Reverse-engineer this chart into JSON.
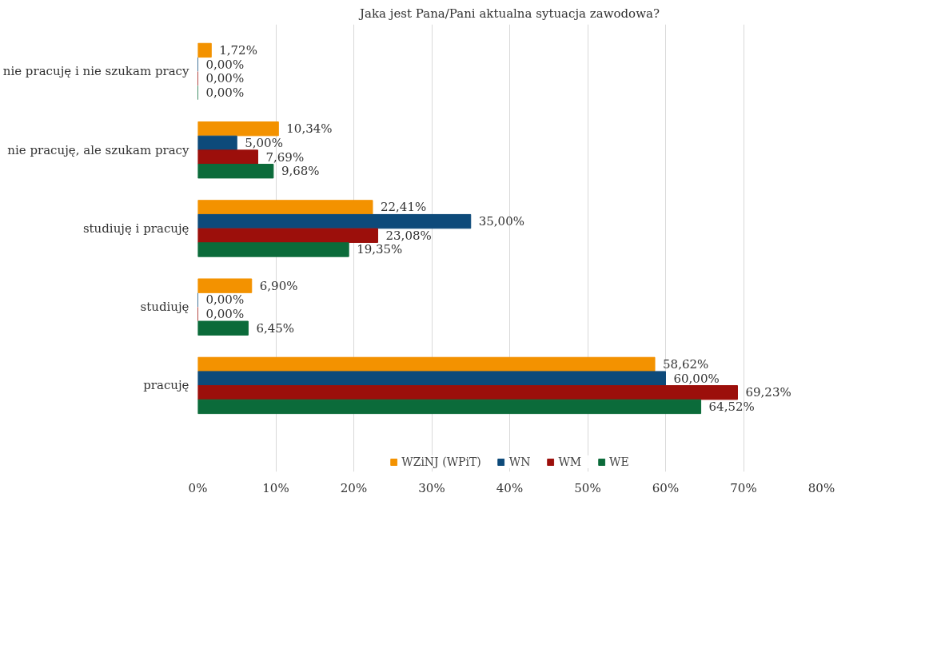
{
  "chart_data": {
    "type": "bar",
    "orientation": "horizontal",
    "title": "Jaka jest Pana/Pani aktualna sytuacja zawodowa?",
    "categories": [
      "nie pracuję i nie szukam pracy",
      "nie pracuję, ale szukam pracy",
      "studiuję i pracuję",
      "studiuję",
      "pracuję"
    ],
    "series": [
      {
        "name": "WZiNJ (WPiT)",
        "color": "#f39200",
        "values": [
          1.72,
          10.34,
          22.41,
          6.9,
          58.62
        ],
        "value_labels": [
          "1,72%",
          "10,34%",
          "22,41%",
          "6,90%",
          "58,62%"
        ]
      },
      {
        "name": "WN",
        "color": "#0d4a7a",
        "values": [
          0,
          5.0,
          35.0,
          0,
          60.0
        ],
        "value_labels": [
          "0,00%",
          "5,00%",
          "35,00%",
          "0,00%",
          "60,00%"
        ]
      },
      {
        "name": "WM",
        "color": "#9c0f0b",
        "values": [
          0,
          7.69,
          23.08,
          0,
          69.23
        ],
        "value_labels": [
          "0,00%",
          "7,69%",
          "23,08%",
          "0,00%",
          "69,23%"
        ]
      },
      {
        "name": "WE",
        "color": "#0b6b3a",
        "values": [
          0,
          9.68,
          19.35,
          6.45,
          64.52
        ],
        "value_labels": [
          "0,00%",
          "9,68%",
          "19,35%",
          "6,45%",
          "64,52%"
        ]
      }
    ],
    "xlim": [
      0,
      80
    ],
    "xticks": [
      {
        "value": 0,
        "label": "0%"
      },
      {
        "value": 10,
        "label": "10%"
      },
      {
        "value": 20,
        "label": "20%"
      },
      {
        "value": 30,
        "label": "30%"
      },
      {
        "value": 40,
        "label": "40%"
      },
      {
        "value": 50,
        "label": "50%"
      },
      {
        "value": 60,
        "label": "60%"
      },
      {
        "value": 70,
        "label": "70%"
      },
      {
        "value": 80,
        "label": "80%"
      }
    ],
    "grid": "x",
    "legend": "bottom"
  }
}
